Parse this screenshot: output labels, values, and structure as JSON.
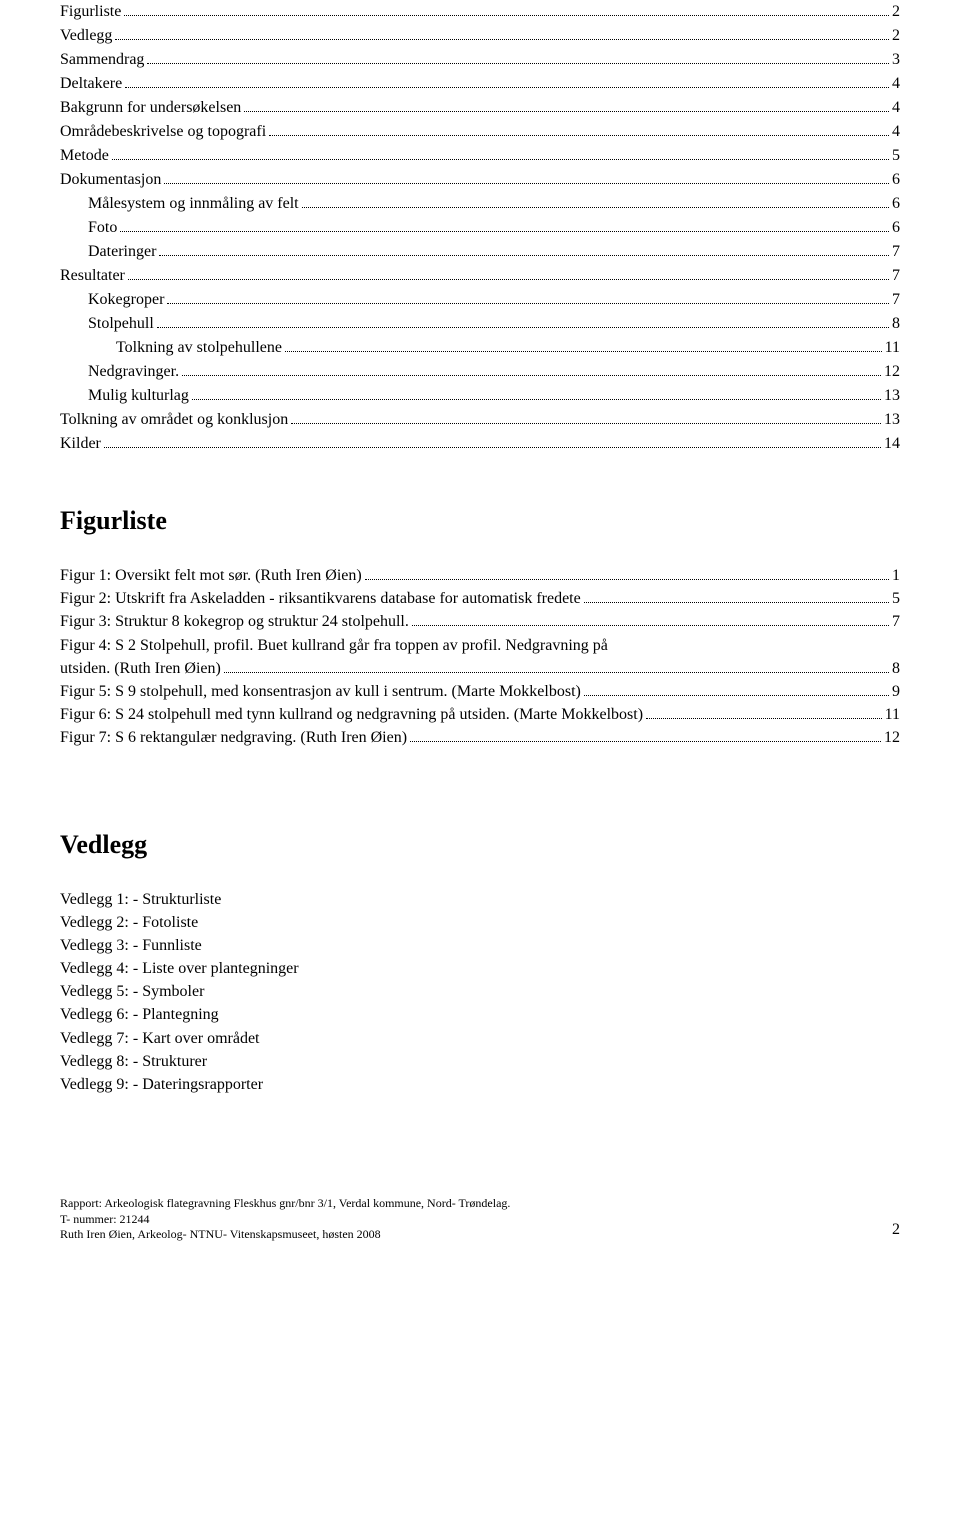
{
  "toc": [
    {
      "label": "Figurliste",
      "page": "2",
      "indent": 0
    },
    {
      "label": "Vedlegg",
      "page": "2",
      "indent": 0
    },
    {
      "label": "Sammendrag",
      "page": "3",
      "indent": 0
    },
    {
      "label": "Deltakere",
      "page": "4",
      "indent": 0
    },
    {
      "label": "Bakgrunn for undersøkelsen",
      "page": "4",
      "indent": 0
    },
    {
      "label": "Områdebeskrivelse og topografi",
      "page": "4",
      "indent": 0
    },
    {
      "label": "Metode",
      "page": "5",
      "indent": 0
    },
    {
      "label": "Dokumentasjon",
      "page": "6",
      "indent": 0
    },
    {
      "label": "Målesystem og innmåling av felt",
      "page": "6",
      "indent": 1
    },
    {
      "label": "Foto",
      "page": "6",
      "indent": 1
    },
    {
      "label": "Dateringer",
      "page": "7",
      "indent": 1
    },
    {
      "label": "Resultater",
      "page": "7",
      "indent": 0
    },
    {
      "label": "Kokegroper",
      "page": "7",
      "indent": 1
    },
    {
      "label": "Stolpehull",
      "page": "8",
      "indent": 1
    },
    {
      "label": "Tolkning av stolpehullene",
      "page": "11",
      "indent": 2
    },
    {
      "label": "Nedgravinger.",
      "page": "12",
      "indent": 1
    },
    {
      "label": "Mulig kulturlag",
      "page": "13",
      "indent": 1
    },
    {
      "label": "Tolkning av området og konklusjon",
      "page": "13",
      "indent": 0
    },
    {
      "label": "Kilder",
      "page": "14",
      "indent": 0
    }
  ],
  "figurliste": {
    "heading": "Figurliste",
    "items": [
      {
        "lines": [
          "Figur 1: Oversikt felt mot sør. (Ruth Iren Øien)"
        ],
        "page": "1"
      },
      {
        "lines": [
          "Figur 2: Utskrift fra Askeladden - riksantikvarens database for automatisk fredete"
        ],
        "page": "5"
      },
      {
        "lines": [
          "Figur 3: Struktur 8 kokegrop og struktur 24 stolpehull."
        ],
        "page": "7"
      },
      {
        "lines": [
          "Figur 4: S 2 Stolpehull, profil. Buet kullrand går fra toppen av profil. Nedgravning på",
          "utsiden. (Ruth Iren Øien)"
        ],
        "page": "8"
      },
      {
        "lines": [
          "Figur 5: S 9 stolpehull, med konsentrasjon av kull i sentrum. (Marte Mokkelbost)"
        ],
        "page": "9"
      },
      {
        "lines": [
          "Figur 6: S 24 stolpehull med tynn kullrand og nedgravning på utsiden. (Marte Mokkelbost)"
        ],
        "page": "11"
      },
      {
        "lines": [
          "Figur 7: S 6 rektangulær nedgraving. (Ruth Iren Øien)"
        ],
        "page": "12"
      }
    ]
  },
  "vedlegg": {
    "heading": "Vedlegg",
    "items": [
      "Vedlegg 1: - Strukturliste",
      "Vedlegg 2: - Fotoliste",
      "Vedlegg 3: - Funnliste",
      "Vedlegg 4: - Liste over plantegninger",
      "Vedlegg 5: - Symboler",
      "Vedlegg 6: - Plantegning",
      "Vedlegg 7: - Kart over området",
      "Vedlegg 8: - Strukturer",
      "Vedlegg 9: - Dateringsrapporter"
    ]
  },
  "footer": {
    "line1": "Rapport: Arkeologisk flategravning Fleskhus gnr/bnr 3/1, Verdal kommune, Nord- Trøndelag.",
    "line2": "T- nummer: 21244",
    "line3": "Ruth Iren Øien, Arkeolog- NTNU- Vitenskapsmuseet, høsten 2008",
    "page": "2"
  }
}
